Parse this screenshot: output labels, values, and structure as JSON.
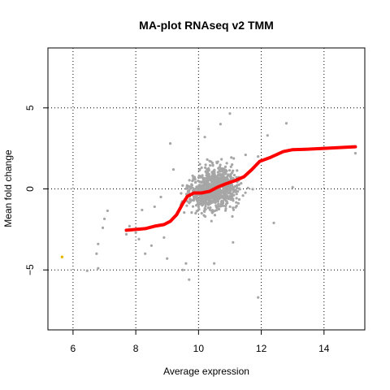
{
  "chart_data": {
    "type": "scatter",
    "title": "MA-plot RNAseq v2 TMM",
    "xlabel": "Average expression",
    "ylabel": "Mean fold change",
    "xlim": [
      5.2,
      15.3
    ],
    "ylim": [
      -8.7,
      8.7
    ],
    "x_ticks": [
      6,
      8,
      10,
      12,
      14
    ],
    "y_ticks": [
      -5,
      0,
      5
    ],
    "grid": true,
    "colors": {
      "points": "#a6a6a6",
      "highlight": "#e6b800",
      "trend": "#ff0000"
    },
    "highlight_points": [
      {
        "x": 5.65,
        "y": -4.2
      }
    ],
    "outlier_points": [
      {
        "x": 6.45,
        "y": -5.05
      },
      {
        "x": 6.8,
        "y": -3.4
      },
      {
        "x": 6.8,
        "y": -4.9
      },
      {
        "x": 6.75,
        "y": -4.0
      },
      {
        "x": 6.95,
        "y": -2.4
      },
      {
        "x": 7.0,
        "y": -1.85
      },
      {
        "x": 7.1,
        "y": -1.35
      },
      {
        "x": 7.7,
        "y": -2.8
      },
      {
        "x": 7.8,
        "y": -2.3
      },
      {
        "x": 8.0,
        "y": -2.7
      },
      {
        "x": 8.1,
        "y": -3.1
      },
      {
        "x": 8.2,
        "y": -1.3
      },
      {
        "x": 8.3,
        "y": -4.0
      },
      {
        "x": 8.5,
        "y": -3.5
      },
      {
        "x": 8.6,
        "y": -1.1
      },
      {
        "x": 8.8,
        "y": -0.5
      },
      {
        "x": 8.9,
        "y": -3.0
      },
      {
        "x": 9.0,
        "y": -4.3
      },
      {
        "x": 9.1,
        "y": 2.8
      },
      {
        "x": 9.2,
        "y": 1.2
      },
      {
        "x": 9.5,
        "y": -5.0
      },
      {
        "x": 9.7,
        "y": -5.6
      },
      {
        "x": 9.6,
        "y": -4.6
      },
      {
        "x": 10.0,
        "y": 3.7
      },
      {
        "x": 10.2,
        "y": 3.2
      },
      {
        "x": 10.5,
        "y": -4.6
      },
      {
        "x": 10.7,
        "y": 4.0
      },
      {
        "x": 11.0,
        "y": 4.65
      },
      {
        "x": 11.1,
        "y": -3.3
      },
      {
        "x": 11.5,
        "y": 2.1
      },
      {
        "x": 11.9,
        "y": 2.0
      },
      {
        "x": 11.9,
        "y": -6.7
      },
      {
        "x": 12.2,
        "y": 3.3
      },
      {
        "x": 12.4,
        "y": -2.1
      },
      {
        "x": 12.8,
        "y": 4.05
      },
      {
        "x": 13.0,
        "y": 0.1
      },
      {
        "x": 15.0,
        "y": 2.2
      }
    ],
    "trend": [
      {
        "x": 7.7,
        "y": -2.55
      },
      {
        "x": 8.0,
        "y": -2.5
      },
      {
        "x": 8.3,
        "y": -2.45
      },
      {
        "x": 8.6,
        "y": -2.3
      },
      {
        "x": 8.9,
        "y": -2.2
      },
      {
        "x": 9.1,
        "y": -2.0
      },
      {
        "x": 9.3,
        "y": -1.6
      },
      {
        "x": 9.5,
        "y": -0.9
      },
      {
        "x": 9.65,
        "y": -0.45
      },
      {
        "x": 9.85,
        "y": -0.25
      },
      {
        "x": 10.1,
        "y": -0.25
      },
      {
        "x": 10.35,
        "y": -0.15
      },
      {
        "x": 10.6,
        "y": 0.1
      },
      {
        "x": 10.85,
        "y": 0.3
      },
      {
        "x": 11.15,
        "y": 0.5
      },
      {
        "x": 11.45,
        "y": 0.75
      },
      {
        "x": 11.7,
        "y": 1.2
      },
      {
        "x": 11.95,
        "y": 1.7
      },
      {
        "x": 12.3,
        "y": 1.95
      },
      {
        "x": 12.7,
        "y": 2.3
      },
      {
        "x": 13.0,
        "y": 2.42
      },
      {
        "x": 13.5,
        "y": 2.45
      },
      {
        "x": 14.0,
        "y": 2.5
      },
      {
        "x": 14.5,
        "y": 2.55
      },
      {
        "x": 15.0,
        "y": 2.6
      }
    ]
  }
}
